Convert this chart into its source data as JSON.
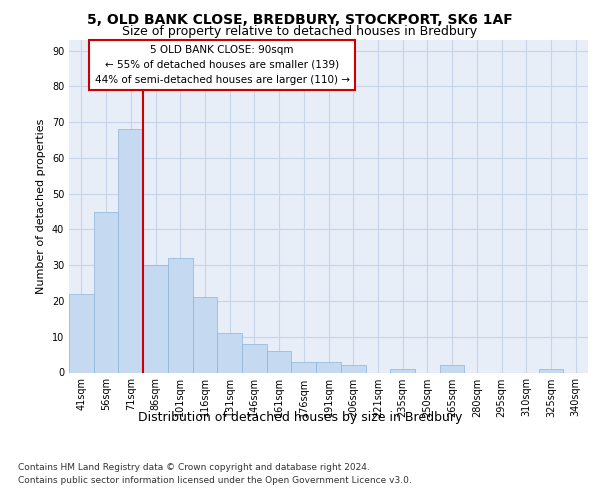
{
  "title1": "5, OLD BANK CLOSE, BREDBURY, STOCKPORT, SK6 1AF",
  "title2": "Size of property relative to detached houses in Bredbury",
  "xlabel": "Distribution of detached houses by size in Bredbury",
  "ylabel": "Number of detached properties",
  "categories": [
    "41sqm",
    "56sqm",
    "71sqm",
    "86sqm",
    "101sqm",
    "116sqm",
    "131sqm",
    "146sqm",
    "161sqm",
    "176sqm",
    "191sqm",
    "206sqm",
    "221sqm",
    "235sqm",
    "250sqm",
    "265sqm",
    "280sqm",
    "295sqm",
    "310sqm",
    "325sqm",
    "340sqm"
  ],
  "values": [
    22,
    45,
    68,
    30,
    32,
    21,
    11,
    8,
    6,
    3,
    3,
    2,
    0,
    1,
    0,
    2,
    0,
    0,
    0,
    1,
    0
  ],
  "bar_color": "#c5d9f0",
  "bar_edge_color": "#8ab4d8",
  "vline_x_index": 2,
  "vline_color": "#cc0000",
  "annotation_lines": [
    "5 OLD BANK CLOSE: 90sqm",
    "← 55% of detached houses are smaller (139)",
    "44% of semi-detached houses are larger (110) →"
  ],
  "annotation_box_color": "#ffffff",
  "annotation_box_edge": "#cc0000",
  "ylim": [
    0,
    93
  ],
  "yticks": [
    0,
    10,
    20,
    30,
    40,
    50,
    60,
    70,
    80,
    90
  ],
  "grid_color": "#c8d4e8",
  "background_color": "#e8eef8",
  "footer_line1": "Contains HM Land Registry data © Crown copyright and database right 2024.",
  "footer_line2": "Contains public sector information licensed under the Open Government Licence v3.0.",
  "title1_fontsize": 10,
  "title2_fontsize": 9,
  "xlabel_fontsize": 9,
  "ylabel_fontsize": 8,
  "tick_fontsize": 7,
  "annotation_fontsize": 7.5,
  "footer_fontsize": 6.5
}
